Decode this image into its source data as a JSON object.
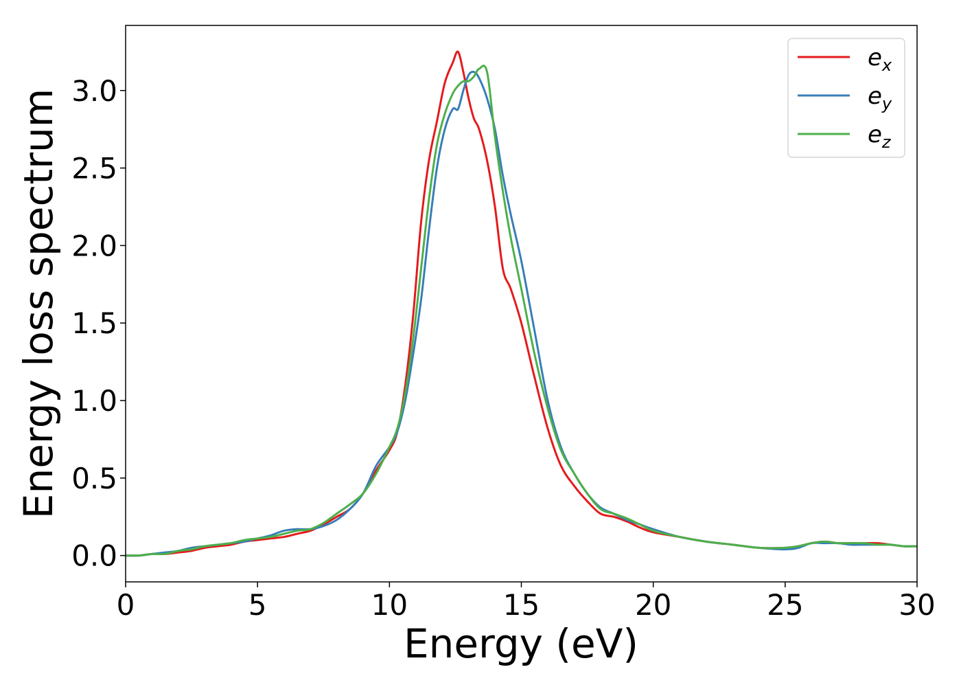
{
  "chart_data": {
    "type": "line",
    "title": "",
    "xlabel": "Energy (eV)",
    "ylabel": "Energy loss spectrum",
    "xlim": [
      0,
      30
    ],
    "ylim": [
      -0.17,
      3.42
    ],
    "xticks": [
      0,
      5,
      10,
      15,
      20,
      25,
      30
    ],
    "xtick_labels": [
      "0",
      "5",
      "10",
      "15",
      "20",
      "25",
      "30"
    ],
    "yticks": [
      0.0,
      0.5,
      1.0,
      1.5,
      2.0,
      2.5,
      3.0
    ],
    "ytick_labels": [
      "0.0",
      "0.5",
      "1.0",
      "1.5",
      "2.0",
      "2.5",
      "3.0"
    ],
    "grid": false,
    "legend_position": "top-right",
    "series": [
      {
        "name": "e_x",
        "legend_base": "e",
        "legend_sub": "x",
        "color": "#e41a1c",
        "x": [
          0,
          0.5,
          1,
          1.5,
          2,
          2.5,
          3,
          3.5,
          4,
          4.5,
          5,
          5.5,
          6,
          6.5,
          7,
          7.5,
          8,
          8.5,
          9,
          9.5,
          10,
          10.3,
          10.6,
          10.9,
          11.2,
          11.5,
          11.8,
          12.1,
          12.4,
          12.6,
          12.8,
          13.0,
          13.2,
          13.4,
          13.7,
          14.0,
          14.3,
          14.6,
          15.0,
          15.5,
          16.0,
          16.5,
          17.0,
          17.5,
          18.0,
          18.5,
          19.0,
          19.5,
          20,
          21,
          22,
          23,
          24,
          25,
          25.5,
          26,
          26.5,
          27,
          27.5,
          28,
          28.5,
          29,
          29.5,
          30
        ],
        "y": [
          0.0,
          0.0,
          0.01,
          0.01,
          0.02,
          0.03,
          0.05,
          0.06,
          0.07,
          0.09,
          0.1,
          0.11,
          0.12,
          0.14,
          0.16,
          0.2,
          0.25,
          0.3,
          0.4,
          0.55,
          0.68,
          0.8,
          1.1,
          1.55,
          2.15,
          2.55,
          2.8,
          3.05,
          3.18,
          3.25,
          3.12,
          2.95,
          2.82,
          2.75,
          2.55,
          2.25,
          1.85,
          1.72,
          1.5,
          1.15,
          0.82,
          0.58,
          0.45,
          0.35,
          0.27,
          0.25,
          0.22,
          0.18,
          0.15,
          0.12,
          0.09,
          0.07,
          0.05,
          0.05,
          0.06,
          0.08,
          0.09,
          0.08,
          0.08,
          0.08,
          0.08,
          0.07,
          0.06,
          0.06
        ]
      },
      {
        "name": "e_y",
        "legend_base": "e",
        "legend_sub": "y",
        "color": "#377eb8",
        "x": [
          0,
          0.5,
          1,
          1.5,
          2,
          2.5,
          3,
          3.5,
          4,
          4.5,
          5,
          5.5,
          6,
          6.5,
          7,
          7.5,
          8,
          8.5,
          9,
          9.5,
          10,
          10.3,
          10.6,
          10.9,
          11.2,
          11.5,
          11.8,
          12.1,
          12.4,
          12.6,
          12.8,
          13.0,
          13.2,
          13.4,
          13.7,
          14.0,
          14.3,
          14.6,
          15.0,
          15.5,
          16.0,
          16.5,
          17.0,
          17.5,
          18.0,
          18.5,
          19.0,
          19.5,
          20,
          21,
          22,
          23,
          24,
          25,
          25.5,
          26,
          26.5,
          27,
          27.5,
          28,
          28.5,
          29,
          29.5,
          30
        ],
        "y": [
          0.0,
          0.0,
          0.01,
          0.02,
          0.03,
          0.05,
          0.06,
          0.07,
          0.08,
          0.09,
          0.11,
          0.13,
          0.16,
          0.17,
          0.17,
          0.19,
          0.23,
          0.3,
          0.4,
          0.58,
          0.7,
          0.8,
          1.0,
          1.3,
          1.65,
          2.1,
          2.5,
          2.75,
          2.88,
          2.88,
          3.0,
          3.1,
          3.12,
          3.08,
          2.95,
          2.75,
          2.45,
          2.2,
          1.9,
          1.45,
          1.0,
          0.7,
          0.53,
          0.4,
          0.31,
          0.27,
          0.23,
          0.2,
          0.17,
          0.12,
          0.09,
          0.07,
          0.05,
          0.04,
          0.05,
          0.08,
          0.08,
          0.08,
          0.07,
          0.07,
          0.07,
          0.07,
          0.06,
          0.06
        ]
      },
      {
        "name": "e_z",
        "legend_base": "e",
        "legend_sub": "z",
        "color": "#4daf4a",
        "x": [
          0,
          0.5,
          1,
          1.5,
          2,
          2.5,
          3,
          3.5,
          4,
          4.5,
          5,
          5.5,
          6,
          6.5,
          7,
          7.5,
          8,
          8.5,
          9,
          9.5,
          10,
          10.3,
          10.6,
          10.9,
          11.2,
          11.5,
          11.8,
          12.1,
          12.4,
          12.6,
          12.8,
          13.0,
          13.2,
          13.4,
          13.7,
          14.0,
          14.3,
          14.6,
          15.0,
          15.5,
          16.0,
          16.5,
          17.0,
          17.5,
          18.0,
          18.5,
          19.0,
          19.5,
          20,
          21,
          22,
          23,
          24,
          25,
          25.5,
          26,
          26.5,
          27,
          27.5,
          28,
          28.5,
          29,
          29.5,
          30
        ],
        "y": [
          0.0,
          0.0,
          0.01,
          0.01,
          0.03,
          0.04,
          0.06,
          0.07,
          0.08,
          0.1,
          0.11,
          0.12,
          0.14,
          0.16,
          0.17,
          0.21,
          0.27,
          0.33,
          0.4,
          0.53,
          0.7,
          0.82,
          1.05,
          1.4,
          1.85,
          2.3,
          2.65,
          2.85,
          2.98,
          3.03,
          3.06,
          3.06,
          3.09,
          3.14,
          3.12,
          2.7,
          2.35,
          2.05,
          1.72,
          1.3,
          0.95,
          0.68,
          0.53,
          0.4,
          0.3,
          0.27,
          0.24,
          0.2,
          0.16,
          0.12,
          0.09,
          0.07,
          0.05,
          0.05,
          0.06,
          0.08,
          0.09,
          0.08,
          0.08,
          0.08,
          0.07,
          0.07,
          0.06,
          0.06
        ]
      }
    ]
  }
}
